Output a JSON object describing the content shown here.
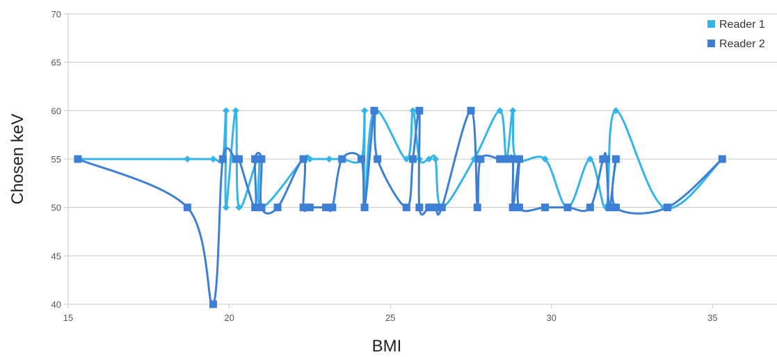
{
  "chart_data": {
    "type": "line",
    "title": "",
    "xlabel": "BMI",
    "ylabel": "Chosen keV",
    "xlim": [
      15,
      37
    ],
    "ylim": [
      40,
      70
    ],
    "x_ticks": [
      15,
      20,
      25,
      30,
      35
    ],
    "y_ticks": [
      40,
      45,
      50,
      55,
      60,
      65,
      70
    ],
    "x_tick_labels": [
      "15",
      "20",
      "25",
      "30",
      "35"
    ],
    "y_tick_labels": [
      "40",
      "45",
      "50",
      "55",
      "60",
      "65",
      "70"
    ],
    "grid": "horizontal",
    "legend_position": "top-right",
    "series": [
      {
        "name": "Reader 1",
        "color": "#33b5e8",
        "marker": "diamond",
        "points": [
          [
            15.3,
            55
          ],
          [
            18.7,
            55
          ],
          [
            19.5,
            55
          ],
          [
            19.8,
            55
          ],
          [
            19.9,
            60
          ],
          [
            19.9,
            50
          ],
          [
            20.2,
            60
          ],
          [
            20.3,
            50
          ],
          [
            20.9,
            55
          ],
          [
            21.0,
            50
          ],
          [
            22.3,
            55
          ],
          [
            22.5,
            55
          ],
          [
            23.1,
            55
          ],
          [
            23.5,
            55
          ],
          [
            24.1,
            55
          ],
          [
            24.2,
            60
          ],
          [
            24.2,
            50
          ],
          [
            24.5,
            60
          ],
          [
            25.5,
            55
          ],
          [
            25.7,
            60
          ],
          [
            25.9,
            55
          ],
          [
            26.2,
            55
          ],
          [
            26.4,
            55
          ],
          [
            26.6,
            50
          ],
          [
            27.6,
            55
          ],
          [
            28.4,
            60
          ],
          [
            28.6,
            55
          ],
          [
            28.8,
            60
          ],
          [
            28.9,
            55
          ],
          [
            29.8,
            55
          ],
          [
            30.5,
            50
          ],
          [
            31.2,
            55
          ],
          [
            31.7,
            50
          ],
          [
            32.0,
            60
          ],
          [
            33.5,
            50
          ],
          [
            35.3,
            55
          ]
        ]
      },
      {
        "name": "Reader 2",
        "color": "#3d7fd4",
        "marker": "square",
        "points": [
          [
            15.3,
            55
          ],
          [
            18.7,
            50
          ],
          [
            19.5,
            40
          ],
          [
            19.8,
            55
          ],
          [
            20.2,
            55
          ],
          [
            20.3,
            55
          ],
          [
            20.8,
            50
          ],
          [
            20.8,
            55
          ],
          [
            21.0,
            55
          ],
          [
            21.0,
            50
          ],
          [
            21.5,
            50
          ],
          [
            22.3,
            55
          ],
          [
            22.3,
            50
          ],
          [
            22.5,
            50
          ],
          [
            23.0,
            50
          ],
          [
            23.2,
            50
          ],
          [
            23.5,
            55
          ],
          [
            24.1,
            55
          ],
          [
            24.2,
            50
          ],
          [
            24.5,
            60
          ],
          [
            24.6,
            55
          ],
          [
            25.5,
            50
          ],
          [
            25.7,
            55
          ],
          [
            25.9,
            60
          ],
          [
            25.9,
            50
          ],
          [
            26.2,
            50
          ],
          [
            26.4,
            50
          ],
          [
            26.6,
            50
          ],
          [
            27.5,
            60
          ],
          [
            27.7,
            50
          ],
          [
            27.8,
            55
          ],
          [
            28.4,
            55
          ],
          [
            28.6,
            55
          ],
          [
            28.8,
            55
          ],
          [
            28.8,
            50
          ],
          [
            29.0,
            55
          ],
          [
            29.0,
            50
          ],
          [
            29.8,
            50
          ],
          [
            30.5,
            50
          ],
          [
            31.2,
            50
          ],
          [
            31.6,
            55
          ],
          [
            31.7,
            55
          ],
          [
            31.8,
            50
          ],
          [
            32.0,
            55
          ],
          [
            32.0,
            50
          ],
          [
            33.6,
            50
          ],
          [
            35.3,
            55
          ]
        ]
      }
    ]
  }
}
